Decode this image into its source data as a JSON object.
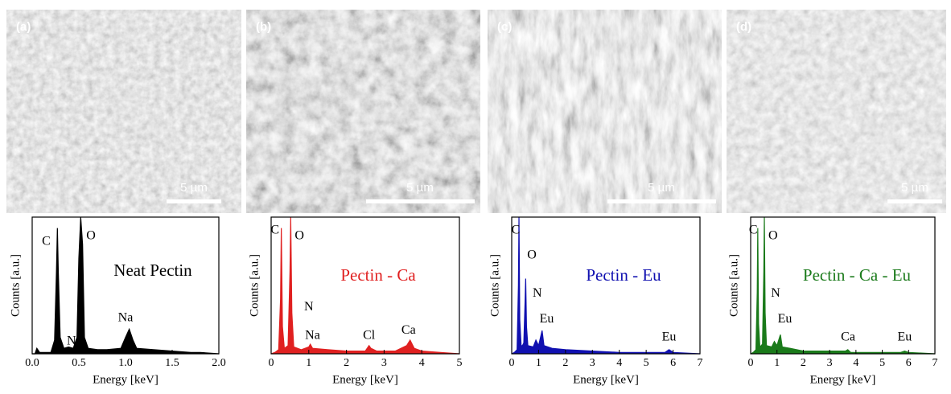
{
  "panels": [
    {
      "label": "(a)",
      "scale_bar": "5 µm"
    },
    {
      "label": "(b)",
      "scale_bar": "5 µm"
    },
    {
      "label": "(c)",
      "scale_bar": "5 µm"
    },
    {
      "label": "(d)",
      "scale_bar": "5 µm"
    }
  ],
  "chart_data": [
    {
      "type": "area",
      "x_label": "Energy [keV]",
      "y_label": "Counts [a.u.]",
      "x": [
        0,
        0.03,
        0.05,
        0.08,
        0.2,
        0.24,
        0.26,
        0.27,
        0.28,
        0.3,
        0.34,
        0.39,
        0.44,
        0.48,
        0.5,
        0.52,
        0.54,
        0.56,
        0.6,
        0.7,
        0.8,
        0.95,
        1.0,
        1.04,
        1.08,
        1.12,
        1.3,
        1.5,
        1.7,
        1.8,
        2.0
      ],
      "series": [
        {
          "name": "Neat Pectin",
          "color": "#000000",
          "values": [
            0,
            0,
            4,
            1,
            1,
            10,
            60,
            92,
            60,
            12,
            4,
            5,
            4,
            12,
            70,
            100,
            80,
            12,
            4,
            3,
            3,
            4,
            12,
            18,
            10,
            4,
            3,
            2,
            1,
            1,
            0
          ]
        }
      ],
      "xlim": [
        0,
        2.0
      ],
      "ylim": [
        0,
        100
      ],
      "xticks": [
        {
          "value": 0,
          "label": "0.0"
        },
        {
          "value": 0.5,
          "label": "0.5"
        },
        {
          "value": 1,
          "label": "1.0"
        },
        {
          "value": 1.5,
          "label": "1.5"
        },
        {
          "value": 2,
          "label": "2.0"
        }
      ],
      "annotations": [
        {
          "text": "C",
          "x": 0.15,
          "y": 82
        },
        {
          "text": "O",
          "x": 0.63,
          "y": 86
        },
        {
          "text": "N",
          "x": 0.42,
          "y": 9
        },
        {
          "text": "Na",
          "x": 1.0,
          "y": 26
        }
      ]
    },
    {
      "type": "area",
      "x_label": "Energy [keV]",
      "y_label": "Counts [a.u.]",
      "x": [
        0,
        0.1,
        0.2,
        0.25,
        0.27,
        0.3,
        0.35,
        0.4,
        0.45,
        0.5,
        0.52,
        0.55,
        0.6,
        0.8,
        1.0,
        1.04,
        1.1,
        1.5,
        2.0,
        2.5,
        2.6,
        2.65,
        2.8,
        3.3,
        3.6,
        3.69,
        3.8,
        4.0,
        4.5,
        5.0
      ],
      "series": [
        {
          "name": "Pectin - Ca",
          "color": "#e02020",
          "values": [
            0,
            1,
            3,
            40,
            92,
            20,
            4,
            5,
            6,
            60,
            100,
            30,
            5,
            3,
            5,
            7,
            4,
            3,
            2,
            2,
            6,
            4,
            2,
            2,
            6,
            10,
            4,
            2,
            1,
            0
          ]
        }
      ],
      "xlim": [
        0,
        5
      ],
      "ylim": [
        0,
        100
      ],
      "xticks": [
        0,
        1,
        2,
        3,
        4,
        5
      ],
      "annotations": [
        {
          "text": "C",
          "x": 0.1,
          "y": 90
        },
        {
          "text": "O",
          "x": 0.75,
          "y": 86
        },
        {
          "text": "N",
          "x": 1.0,
          "y": 34
        },
        {
          "text": "Na",
          "x": 1.1,
          "y": 13
        },
        {
          "text": "Cl",
          "x": 2.6,
          "y": 13
        },
        {
          "text": "Ca",
          "x": 3.65,
          "y": 17
        }
      ]
    },
    {
      "type": "area",
      "x_label": "Energy [keV]",
      "y_label": "Counts [a.u.]",
      "x": [
        0,
        0.1,
        0.2,
        0.25,
        0.27,
        0.3,
        0.35,
        0.4,
        0.45,
        0.5,
        0.52,
        0.55,
        0.6,
        0.8,
        0.9,
        1.0,
        1.13,
        1.2,
        1.5,
        2.0,
        3.0,
        4.0,
        5.0,
        5.7,
        5.85,
        6.0,
        7.0
      ],
      "series": [
        {
          "name": "Pectin - Eu",
          "color": "#1010b0",
          "values": [
            0,
            1,
            3,
            50,
            100,
            25,
            6,
            6,
            8,
            40,
            55,
            20,
            6,
            5,
            10,
            6,
            17,
            6,
            4,
            3,
            2,
            1,
            1,
            1,
            3,
            1,
            0
          ]
        }
      ],
      "xlim": [
        0,
        7
      ],
      "ylim": [
        0,
        100
      ],
      "xticks": [
        0,
        1,
        2,
        3,
        4,
        5,
        6,
        7
      ],
      "annotations": [
        {
          "text": "C",
          "x": 0.15,
          "y": 90
        },
        {
          "text": "O",
          "x": 0.75,
          "y": 72
        },
        {
          "text": "N",
          "x": 0.95,
          "y": 44
        },
        {
          "text": "Eu",
          "x": 1.3,
          "y": 25
        },
        {
          "text": "Eu",
          "x": 5.85,
          "y": 12
        }
      ]
    },
    {
      "type": "area",
      "x_label": "Energy [keV]",
      "y_label": "Counts [a.u.]",
      "x": [
        0,
        0.1,
        0.2,
        0.25,
        0.27,
        0.3,
        0.35,
        0.4,
        0.45,
        0.5,
        0.52,
        0.55,
        0.6,
        0.8,
        0.9,
        1.0,
        1.13,
        1.2,
        1.5,
        2.0,
        3.0,
        3.6,
        3.69,
        3.8,
        4.5,
        5.0,
        5.7,
        5.85,
        6.0,
        7.0
      ],
      "series": [
        {
          "name": "Pectin - Ca - Eu",
          "color": "#1a7a1a",
          "values": [
            0,
            1,
            3,
            45,
            92,
            22,
            5,
            6,
            7,
            60,
            100,
            30,
            6,
            5,
            9,
            6,
            14,
            5,
            4,
            2,
            2,
            2,
            3,
            1,
            1,
            1,
            1,
            2,
            1,
            0
          ]
        }
      ],
      "xlim": [
        0,
        7
      ],
      "ylim": [
        0,
        100
      ],
      "xticks": [
        0,
        1,
        2,
        3,
        4,
        5,
        6,
        7
      ],
      "annotations": [
        {
          "text": "C",
          "x": 0.1,
          "y": 90
        },
        {
          "text": "O",
          "x": 0.85,
          "y": 86
        },
        {
          "text": "N",
          "x": 0.95,
          "y": 44
        },
        {
          "text": "Eu",
          "x": 1.3,
          "y": 25
        },
        {
          "text": "Ca",
          "x": 3.7,
          "y": 12
        },
        {
          "text": "Eu",
          "x": 5.85,
          "y": 12
        }
      ]
    }
  ]
}
